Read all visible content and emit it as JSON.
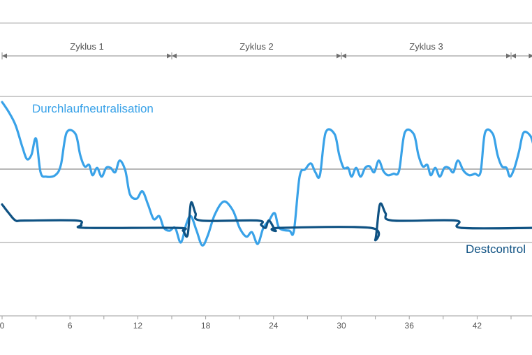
{
  "chart_data": {
    "type": "line",
    "xlim": [
      0,
      47
    ],
    "xticks": [
      0,
      6,
      12,
      18,
      24,
      30,
      36,
      42
    ],
    "grid_levels": [
      "upper",
      "middle",
      "lower"
    ],
    "cycles": [
      {
        "label": "Zyklus 1",
        "start": 0,
        "end": 15
      },
      {
        "label": "Zyklus 2",
        "start": 15,
        "end": 30
      },
      {
        "label": "Zyklus 3",
        "start": 30,
        "end": 45
      },
      {
        "label": "",
        "start": 45,
        "end": 47
      }
    ],
    "series": [
      {
        "name": "Durchlaufneutralisation",
        "color": "#39a2e8",
        "points": [
          [
            0.0,
            96
          ],
          [
            0.6,
            89
          ],
          [
            1.2,
            80
          ],
          [
            1.8,
            65
          ],
          [
            2.2,
            57
          ],
          [
            2.6,
            60
          ],
          [
            3.0,
            71
          ],
          [
            3.4,
            48
          ],
          [
            3.9,
            45
          ],
          [
            4.7,
            46
          ],
          [
            5.2,
            53
          ],
          [
            5.7,
            75
          ],
          [
            6.5,
            74
          ],
          [
            6.9,
            60
          ],
          [
            7.3,
            52
          ],
          [
            7.7,
            53
          ],
          [
            8.0,
            46
          ],
          [
            8.4,
            51
          ],
          [
            8.8,
            45
          ],
          [
            9.2,
            51
          ],
          [
            9.6,
            51
          ],
          [
            10.0,
            48
          ],
          [
            10.4,
            56
          ],
          [
            10.9,
            49
          ],
          [
            11.3,
            33
          ],
          [
            11.9,
            30
          ],
          [
            12.4,
            35
          ],
          [
            12.9,
            26
          ],
          [
            13.4,
            16
          ],
          [
            13.9,
            18
          ],
          [
            14.3,
            10
          ],
          [
            14.8,
            8
          ],
          [
            15.3,
            10
          ],
          [
            15.8,
            0
          ],
          [
            16.3,
            13
          ],
          [
            16.7,
            18
          ],
          [
            17.2,
            8
          ],
          [
            17.7,
            -2
          ],
          [
            18.2,
            5
          ],
          [
            18.8,
            19
          ],
          [
            19.6,
            28
          ],
          [
            20.4,
            22
          ],
          [
            21.0,
            10
          ],
          [
            21.6,
            4
          ],
          [
            22.1,
            7
          ],
          [
            22.6,
            -1
          ],
          [
            23.1,
            10
          ],
          [
            23.6,
            15
          ],
          [
            24.1,
            20
          ],
          [
            24.5,
            10
          ],
          [
            25.4,
            8
          ],
          [
            25.8,
            8
          ],
          [
            26.3,
            45
          ],
          [
            26.8,
            50
          ],
          [
            27.3,
            54
          ],
          [
            27.7,
            48
          ],
          [
            28.1,
            46
          ],
          [
            28.6,
            75
          ],
          [
            29.4,
            74
          ],
          [
            29.8,
            60
          ],
          [
            30.2,
            51
          ],
          [
            30.6,
            51
          ],
          [
            30.9,
            45
          ],
          [
            31.3,
            51
          ],
          [
            31.7,
            45
          ],
          [
            32.1,
            51
          ],
          [
            32.5,
            52
          ],
          [
            32.9,
            48
          ],
          [
            33.3,
            56
          ],
          [
            33.7,
            49
          ],
          [
            34.1,
            46
          ],
          [
            34.6,
            47
          ],
          [
            35.1,
            49
          ],
          [
            35.6,
            75
          ],
          [
            36.4,
            74
          ],
          [
            36.8,
            60
          ],
          [
            37.2,
            52
          ],
          [
            37.6,
            53
          ],
          [
            37.9,
            46
          ],
          [
            38.3,
            51
          ],
          [
            38.7,
            45
          ],
          [
            39.1,
            51
          ],
          [
            39.5,
            51
          ],
          [
            39.9,
            48
          ],
          [
            40.3,
            56
          ],
          [
            40.8,
            49
          ],
          [
            41.3,
            46
          ],
          [
            41.8,
            47
          ],
          [
            42.3,
            48
          ],
          [
            42.7,
            75
          ],
          [
            43.4,
            74
          ],
          [
            43.8,
            60
          ],
          [
            44.2,
            52
          ],
          [
            44.6,
            51
          ],
          [
            44.9,
            45
          ],
          [
            45.3,
            51
          ],
          [
            45.7,
            62
          ],
          [
            46.1,
            75
          ],
          [
            46.7,
            73
          ],
          [
            47.0,
            66
          ]
        ]
      },
      {
        "name": "Destcontrol",
        "color": "#0f5283",
        "points": [
          [
            0.0,
            26
          ],
          [
            0.6,
            20
          ],
          [
            1.2,
            15
          ],
          [
            2.0,
            15
          ],
          [
            6.6,
            15
          ],
          [
            7.0,
            12
          ],
          [
            7.4,
            10
          ],
          [
            15.5,
            10
          ],
          [
            16.0,
            8
          ],
          [
            16.4,
            5
          ],
          [
            16.7,
            27
          ],
          [
            17.1,
            20
          ],
          [
            17.6,
            15
          ],
          [
            22.6,
            15
          ],
          [
            22.9,
            12
          ],
          [
            23.3,
            10
          ],
          [
            23.6,
            15
          ],
          [
            24.2,
            8
          ],
          [
            24.5,
            10
          ],
          [
            32.6,
            10
          ],
          [
            33.0,
            2
          ],
          [
            33.4,
            26
          ],
          [
            33.9,
            20
          ],
          [
            34.5,
            15
          ],
          [
            40.1,
            15
          ],
          [
            40.6,
            10
          ],
          [
            47.0,
            10
          ]
        ]
      }
    ]
  }
}
